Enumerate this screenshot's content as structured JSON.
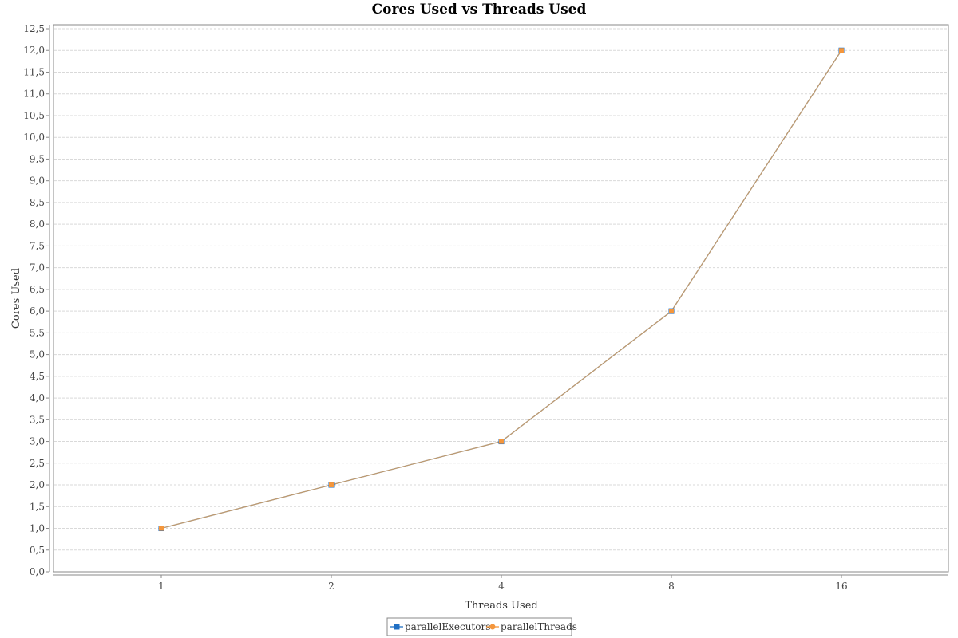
{
  "colors": {
    "plot_border": "#888888",
    "grid": "#d9d9d9",
    "axis": "#888888",
    "series_executors": "#1f6fc4",
    "series_threads": "#f4963c",
    "line_overlap": "#c8955a",
    "legend_border": "#888888"
  },
  "chart_data": {
    "type": "line",
    "title": "Cores Used vs Threads Used",
    "xlabel": "Threads Used",
    "ylabel": "Cores Used",
    "categories": [
      "1",
      "2",
      "4",
      "8",
      "16"
    ],
    "ylim": [
      0,
      12.5
    ],
    "ytick_step": 0.5,
    "ytick_labels": [
      "0,0",
      "0,5",
      "1,0",
      "1,5",
      "2,0",
      "2,5",
      "3,0",
      "3,5",
      "4,0",
      "4,5",
      "5,0",
      "5,5",
      "6,0",
      "6,5",
      "7,0",
      "7,5",
      "8,0",
      "8,5",
      "9,0",
      "9,5",
      "10,0",
      "10,5",
      "11,0",
      "11,5",
      "12,0",
      "12,5"
    ],
    "grid": true,
    "legend_position": "bottom-center",
    "series": [
      {
        "name": "parallelExecutors",
        "marker": "square",
        "color_key": "series_executors",
        "values": [
          1,
          2,
          3,
          6,
          12
        ]
      },
      {
        "name": "parallelThreads",
        "marker": "circle",
        "color_key": "series_threads",
        "values": [
          1,
          2,
          3,
          6,
          12
        ]
      }
    ]
  }
}
